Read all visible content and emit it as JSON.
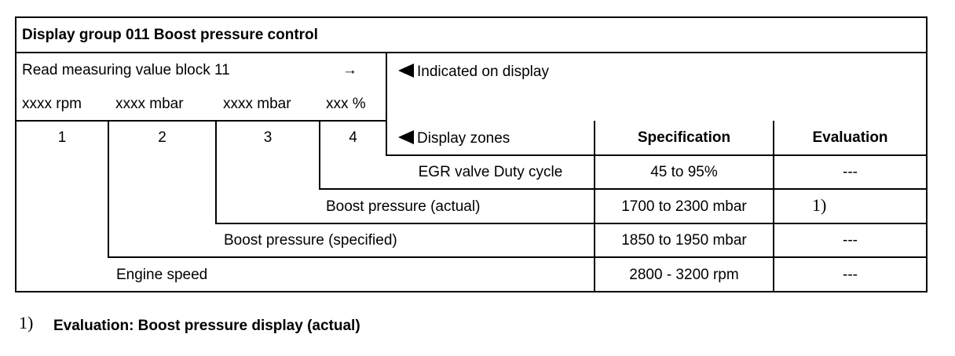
{
  "title": "Display group 011 Boost pressure control",
  "read_block": {
    "label": "Read measuring value block 11",
    "arrow": "→"
  },
  "units": [
    "xxxx rpm",
    "xxxx mbar",
    "xxxx mbar",
    "xxx %"
  ],
  "fields": [
    "1",
    "2",
    "3",
    "4"
  ],
  "indicated_label": "Indicated on display",
  "display_zones_label": "Display zones",
  "headers": {
    "specification": "Specification",
    "evaluation": "Evaluation"
  },
  "rows": [
    {
      "label": "EGR valve Duty cycle",
      "spec": "45 to 95%",
      "eval": "---"
    },
    {
      "label": "Boost pressure (actual)",
      "spec": "1700 to 2300 mbar",
      "eval": "1)"
    },
    {
      "label": "Boost pressure (specified)",
      "spec": "1850 to 1950 mbar",
      "eval": "---"
    },
    {
      "label": "Engine speed",
      "spec": "2800 - 3200 rpm",
      "eval": "---"
    }
  ],
  "footnote": {
    "marker": "1)",
    "text": "Evaluation: Boost pressure display (actual)"
  }
}
